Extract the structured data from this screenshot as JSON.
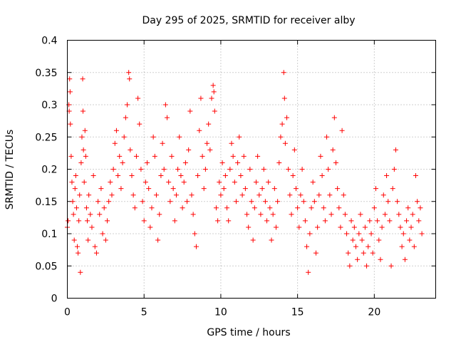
{
  "chart_data": {
    "type": "scatter",
    "title": "Day 295 of 2025, SRMTID for receiver alby",
    "xlabel": "GPS time / hours",
    "ylabel": "SRMTID / TECUs",
    "xlim": [
      0,
      24
    ],
    "ylim": [
      0,
      0.4
    ],
    "x_ticks": [
      0,
      5,
      10,
      15,
      20
    ],
    "x_tick_labels": [
      "0",
      "5",
      "10",
      "15",
      "20"
    ],
    "y_ticks": [
      0,
      0.05,
      0.1,
      0.15,
      0.2,
      0.25,
      0.3,
      0.35,
      0.4
    ],
    "y_tick_labels": [
      "0",
      "0.05",
      "0.1",
      "0.15",
      "0.2",
      "0.25",
      "0.3",
      "0.35",
      "0.4"
    ],
    "grid": true,
    "marker": "+",
    "color": "#ff0000",
    "series": [
      {
        "name": "SRMTID",
        "points": [
          [
            0.0,
            0.11
          ],
          [
            0.05,
            0.12
          ],
          [
            0.1,
            0.3
          ],
          [
            0.12,
            0.29
          ],
          [
            0.15,
            0.34
          ],
          [
            0.18,
            0.32
          ],
          [
            0.2,
            0.27
          ],
          [
            0.25,
            0.22
          ],
          [
            0.3,
            0.18
          ],
          [
            0.35,
            0.15
          ],
          [
            0.4,
            0.13
          ],
          [
            0.45,
            0.09
          ],
          [
            0.5,
            0.17
          ],
          [
            0.55,
            0.19
          ],
          [
            0.6,
            0.14
          ],
          [
            0.65,
            0.08
          ],
          [
            0.7,
            0.07
          ],
          [
            0.75,
            0.12
          ],
          [
            0.8,
            0.16
          ],
          [
            0.85,
            0.04
          ],
          [
            0.9,
            0.21
          ],
          [
            0.95,
            0.25
          ],
          [
            1.0,
            0.34
          ],
          [
            1.02,
            0.29
          ],
          [
            1.05,
            0.23
          ],
          [
            1.1,
            0.18
          ],
          [
            1.15,
            0.26
          ],
          [
            1.2,
            0.22
          ],
          [
            1.25,
            0.14
          ],
          [
            1.3,
            0.12
          ],
          [
            1.35,
            0.09
          ],
          [
            1.4,
            0.16
          ],
          [
            1.5,
            0.13
          ],
          [
            1.6,
            0.11
          ],
          [
            1.7,
            0.19
          ],
          [
            1.8,
            0.08
          ],
          [
            1.9,
            0.07
          ],
          [
            2.0,
            0.15
          ],
          [
            2.1,
            0.13
          ],
          [
            2.2,
            0.17
          ],
          [
            2.3,
            0.1
          ],
          [
            2.4,
            0.14
          ],
          [
            2.5,
            0.09
          ],
          [
            2.6,
            0.12
          ],
          [
            2.7,
            0.15
          ],
          [
            2.8,
            0.18
          ],
          [
            2.9,
            0.16
          ],
          [
            3.0,
            0.2
          ],
          [
            3.1,
            0.24
          ],
          [
            3.2,
            0.26
          ],
          [
            3.3,
            0.19
          ],
          [
            3.4,
            0.22
          ],
          [
            3.5,
            0.17
          ],
          [
            3.6,
            0.21
          ],
          [
            3.7,
            0.25
          ],
          [
            3.8,
            0.28
          ],
          [
            3.9,
            0.3
          ],
          [
            4.0,
            0.35
          ],
          [
            4.05,
            0.34
          ],
          [
            4.1,
            0.23
          ],
          [
            4.2,
            0.19
          ],
          [
            4.3,
            0.16
          ],
          [
            4.4,
            0.14
          ],
          [
            4.5,
            0.22
          ],
          [
            4.6,
            0.31
          ],
          [
            4.7,
            0.27
          ],
          [
            4.8,
            0.2
          ],
          [
            4.9,
            0.15
          ],
          [
            5.0,
            0.12
          ],
          [
            5.1,
            0.18
          ],
          [
            5.2,
            0.21
          ],
          [
            5.3,
            0.17
          ],
          [
            5.4,
            0.11
          ],
          [
            5.5,
            0.14
          ],
          [
            5.6,
            0.25
          ],
          [
            5.7,
            0.22
          ],
          [
            5.8,
            0.16
          ],
          [
            5.9,
            0.09
          ],
          [
            6.0,
            0.13
          ],
          [
            6.1,
            0.19
          ],
          [
            6.2,
            0.24
          ],
          [
            6.3,
            0.2
          ],
          [
            6.4,
            0.3
          ],
          [
            6.5,
            0.28
          ],
          [
            6.6,
            0.18
          ],
          [
            6.7,
            0.15
          ],
          [
            6.8,
            0.22
          ],
          [
            6.9,
            0.17
          ],
          [
            7.0,
            0.12
          ],
          [
            7.1,
            0.16
          ],
          [
            7.2,
            0.2
          ],
          [
            7.3,
            0.25
          ],
          [
            7.4,
            0.19
          ],
          [
            7.5,
            0.14
          ],
          [
            7.6,
            0.18
          ],
          [
            7.7,
            0.21
          ],
          [
            7.8,
            0.15
          ],
          [
            7.9,
            0.23
          ],
          [
            8.0,
            0.29
          ],
          [
            8.1,
            0.16
          ],
          [
            8.2,
            0.13
          ],
          [
            8.3,
            0.1
          ],
          [
            8.4,
            0.08
          ],
          [
            8.5,
            0.19
          ],
          [
            8.6,
            0.26
          ],
          [
            8.7,
            0.31
          ],
          [
            8.8,
            0.22
          ],
          [
            8.9,
            0.17
          ],
          [
            9.0,
            0.2
          ],
          [
            9.1,
            0.24
          ],
          [
            9.2,
            0.27
          ],
          [
            9.3,
            0.23
          ],
          [
            9.4,
            0.31
          ],
          [
            9.5,
            0.33
          ],
          [
            9.55,
            0.32
          ],
          [
            9.6,
            0.29
          ],
          [
            9.7,
            0.14
          ],
          [
            9.8,
            0.12
          ],
          [
            9.9,
            0.18
          ],
          [
            10.0,
            0.16
          ],
          [
            10.1,
            0.21
          ],
          [
            10.2,
            0.17
          ],
          [
            10.3,
            0.19
          ],
          [
            10.4,
            0.14
          ],
          [
            10.5,
            0.12
          ],
          [
            10.6,
            0.2
          ],
          [
            10.7,
            0.24
          ],
          [
            10.8,
            0.22
          ],
          [
            10.9,
            0.18
          ],
          [
            11.0,
            0.15
          ],
          [
            11.1,
            0.21
          ],
          [
            11.2,
            0.25
          ],
          [
            11.3,
            0.19
          ],
          [
            11.4,
            0.16
          ],
          [
            11.5,
            0.22
          ],
          [
            11.6,
            0.17
          ],
          [
            11.7,
            0.13
          ],
          [
            11.8,
            0.11
          ],
          [
            11.9,
            0.2
          ],
          [
            12.0,
            0.15
          ],
          [
            12.1,
            0.09
          ],
          [
            12.2,
            0.14
          ],
          [
            12.3,
            0.18
          ],
          [
            12.4,
            0.22
          ],
          [
            12.5,
            0.16
          ],
          [
            12.6,
            0.13
          ],
          [
            12.7,
            0.17
          ],
          [
            12.8,
            0.2
          ],
          [
            12.9,
            0.15
          ],
          [
            13.0,
            0.12
          ],
          [
            13.1,
            0.18
          ],
          [
            13.2,
            0.14
          ],
          [
            13.3,
            0.09
          ],
          [
            13.4,
            0.13
          ],
          [
            13.5,
            0.17
          ],
          [
            13.6,
            0.11
          ],
          [
            13.7,
            0.15
          ],
          [
            13.8,
            0.21
          ],
          [
            13.9,
            0.25
          ],
          [
            14.0,
            0.27
          ],
          [
            14.1,
            0.35
          ],
          [
            14.15,
            0.31
          ],
          [
            14.2,
            0.24
          ],
          [
            14.3,
            0.28
          ],
          [
            14.4,
            0.2
          ],
          [
            14.5,
            0.16
          ],
          [
            14.6,
            0.13
          ],
          [
            14.7,
            0.19
          ],
          [
            14.8,
            0.23
          ],
          [
            14.9,
            0.17
          ],
          [
            15.0,
            0.14
          ],
          [
            15.1,
            0.11
          ],
          [
            15.2,
            0.16
          ],
          [
            15.3,
            0.2
          ],
          [
            15.4,
            0.15
          ],
          [
            15.5,
            0.12
          ],
          [
            15.6,
            0.08
          ],
          [
            15.7,
            0.04
          ],
          [
            15.8,
            0.1
          ],
          [
            15.9,
            0.14
          ],
          [
            16.0,
            0.18
          ],
          [
            16.1,
            0.15
          ],
          [
            16.2,
            0.07
          ],
          [
            16.3,
            0.11
          ],
          [
            16.4,
            0.16
          ],
          [
            16.5,
            0.22
          ],
          [
            16.6,
            0.19
          ],
          [
            16.7,
            0.14
          ],
          [
            16.8,
            0.12
          ],
          [
            16.9,
            0.25
          ],
          [
            17.0,
            0.2
          ],
          [
            17.1,
            0.16
          ],
          [
            17.2,
            0.13
          ],
          [
            17.3,
            0.23
          ],
          [
            17.4,
            0.28
          ],
          [
            17.5,
            0.21
          ],
          [
            17.6,
            0.17
          ],
          [
            17.7,
            0.14
          ],
          [
            17.8,
            0.11
          ],
          [
            17.9,
            0.26
          ],
          [
            18.0,
            0.16
          ],
          [
            18.1,
            0.13
          ],
          [
            18.2,
            0.1
          ],
          [
            18.3,
            0.07
          ],
          [
            18.4,
            0.05
          ],
          [
            18.5,
            0.12
          ],
          [
            18.6,
            0.09
          ],
          [
            18.7,
            0.11
          ],
          [
            18.8,
            0.08
          ],
          [
            18.9,
            0.06
          ],
          [
            19.0,
            0.1
          ],
          [
            19.1,
            0.13
          ],
          [
            19.2,
            0.09
          ],
          [
            19.3,
            0.07
          ],
          [
            19.4,
            0.11
          ],
          [
            19.5,
            0.05
          ],
          [
            19.6,
            0.08
          ],
          [
            19.7,
            0.12
          ],
          [
            19.8,
            0.1
          ],
          [
            19.9,
            0.07
          ],
          [
            20.0,
            0.14
          ],
          [
            20.1,
            0.17
          ],
          [
            20.2,
            0.12
          ],
          [
            20.3,
            0.09
          ],
          [
            20.4,
            0.06
          ],
          [
            20.5,
            0.11
          ],
          [
            20.6,
            0.16
          ],
          [
            20.7,
            0.13
          ],
          [
            20.8,
            0.19
          ],
          [
            20.9,
            0.15
          ],
          [
            21.0,
            0.12
          ],
          [
            21.1,
            0.05
          ],
          [
            21.2,
            0.17
          ],
          [
            21.3,
            0.2
          ],
          [
            21.4,
            0.23
          ],
          [
            21.5,
            0.15
          ],
          [
            21.6,
            0.13
          ],
          [
            21.7,
            0.11
          ],
          [
            21.8,
            0.08
          ],
          [
            21.9,
            0.1
          ],
          [
            22.0,
            0.06
          ],
          [
            22.1,
            0.12
          ],
          [
            22.2,
            0.14
          ],
          [
            22.3,
            0.09
          ],
          [
            22.4,
            0.11
          ],
          [
            22.5,
            0.13
          ],
          [
            22.6,
            0.08
          ],
          [
            22.7,
            0.19
          ],
          [
            22.8,
            0.15
          ],
          [
            22.9,
            0.12
          ],
          [
            23.0,
            0.14
          ],
          [
            23.1,
            0.1
          ]
        ]
      }
    ]
  }
}
